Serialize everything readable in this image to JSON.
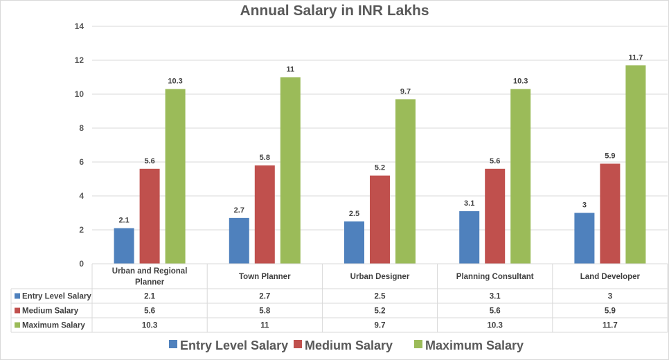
{
  "chart_data": {
    "type": "bar",
    "title": "Annual Salary in INR Lakhs",
    "xlabel": "",
    "ylabel": "",
    "ylim": [
      0,
      14
    ],
    "yticks": [
      "0",
      "2",
      "4",
      "6",
      "8",
      "10",
      "12",
      "14"
    ],
    "grid": true,
    "legend_position": "bottom",
    "categories": [
      "Urban and Regional Planner",
      "Town Planner",
      "Urban Designer",
      "Planning Consultant",
      "Land Developer"
    ],
    "series": [
      {
        "name": "Entry Level Salary",
        "color": "#4f81bd",
        "values": [
          2.1,
          2.7,
          2.5,
          3.1,
          3
        ]
      },
      {
        "name": "Medium Salary",
        "color": "#c0504d",
        "values": [
          5.6,
          5.8,
          5.2,
          5.6,
          5.9
        ]
      },
      {
        "name": "Maximum Salary",
        "color": "#9bbb59",
        "values": [
          10.3,
          11,
          9.7,
          10.3,
          11.7
        ]
      }
    ],
    "data_table": true
  }
}
